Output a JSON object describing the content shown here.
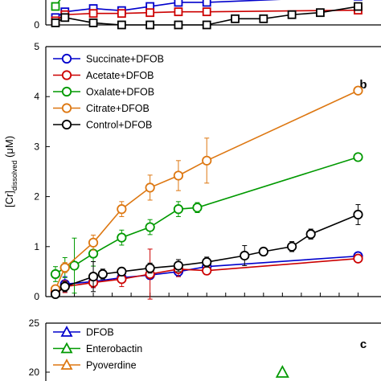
{
  "chart_data": [
    {
      "panel": "a",
      "type": "line",
      "note": "top panel, mostly cropped; only the lower portion is visible",
      "ylim": [
        0,
        1
      ],
      "yticks": [
        "0"
      ],
      "series": [
        {
          "color": "#0000cc",
          "marker": "square",
          "x": [
            0,
            1,
            4,
            7,
            10,
            13,
            16,
            32
          ],
          "y": [
            0.18,
            0.32,
            0.4,
            0.35,
            0.45,
            0.55,
            0.55,
            0.7
          ]
        },
        {
          "color": "#cc0000",
          "marker": "square",
          "x": [
            0,
            1,
            4,
            7,
            10,
            13,
            16,
            32
          ],
          "y": [
            0.1,
            0.25,
            0.28,
            0.28,
            0.3,
            0.32,
            0.32,
            0.36
          ]
        },
        {
          "color": "#009900",
          "marker": "square",
          "x": [
            0,
            1
          ],
          "y": [
            0.45,
            0.78
          ]
        },
        {
          "color": "#000000",
          "marker": "square",
          "x": [
            0,
            1,
            4,
            7,
            10,
            13,
            16,
            19,
            22,
            25,
            28,
            32
          ],
          "y": [
            0.05,
            0.18,
            0.05,
            0.0,
            0.0,
            0.0,
            0.0,
            0.15,
            0.15,
            0.25,
            0.3,
            0.45
          ]
        }
      ]
    },
    {
      "panel": "b",
      "type": "line",
      "panel_label": "b",
      "ylabel": "[Cr]",
      "ylabel_sub": "dissolved",
      "ylabel_unit": " (μM)",
      "ylim": [
        0,
        5
      ],
      "yticks": [
        "0",
        "1",
        "2",
        "3",
        "4",
        "5"
      ],
      "legend": "top-left",
      "series": [
        {
          "name": "Succinate+DFOB",
          "color": "#0000cc",
          "marker": "circle",
          "x": [
            0,
            1,
            4,
            7,
            10,
            13,
            16,
            32
          ],
          "y": [
            0.12,
            0.25,
            0.3,
            0.38,
            0.43,
            0.5,
            0.6,
            0.81
          ],
          "err": [
            0.1,
            0.15,
            0.12,
            0.08,
            0.08,
            0.1,
            0.08,
            0.05
          ]
        },
        {
          "name": "Acetate+DFOB",
          "color": "#cc0000",
          "marker": "circle",
          "x": [
            0,
            1,
            4,
            7,
            10,
            13,
            16,
            32
          ],
          "y": [
            0.1,
            0.2,
            0.28,
            0.35,
            0.45,
            0.55,
            0.52,
            0.76
          ],
          "err": [
            0.05,
            0.12,
            0.1,
            0.15,
            0.5,
            0.15,
            0.08,
            0.05
          ]
        },
        {
          "name": "Oxalate+DFOB",
          "color": "#009900",
          "marker": "circle",
          "x": [
            0,
            1,
            2,
            4,
            7,
            10,
            13,
            15,
            32
          ],
          "y": [
            0.45,
            0.58,
            0.62,
            0.86,
            1.18,
            1.39,
            1.75,
            1.78,
            2.79
          ],
          "err": [
            0.15,
            0.2,
            0.55,
            0.25,
            0.15,
            0.15,
            0.15,
            0.1,
            0.05
          ]
        },
        {
          "name": "Citrate+DFOB",
          "color": "#dd7711",
          "marker": "circle",
          "x": [
            0,
            1,
            4,
            7,
            10,
            13,
            16,
            32
          ],
          "y": [
            0.15,
            0.58,
            1.08,
            1.75,
            2.18,
            2.42,
            2.72,
            4.12
          ],
          "err": [
            0.05,
            0.1,
            0.15,
            0.15,
            0.25,
            0.3,
            0.45,
            0.05
          ]
        },
        {
          "name": "Control+DFOB",
          "color": "#000000",
          "marker": "circle",
          "x": [
            0,
            1,
            4,
            5,
            7,
            10,
            13,
            16,
            20,
            22,
            25,
            27,
            32
          ],
          "y": [
            0.05,
            0.2,
            0.4,
            0.45,
            0.5,
            0.57,
            0.62,
            0.69,
            0.82,
            0.9,
            1.0,
            1.25,
            1.64
          ],
          "err": [
            0.05,
            0.1,
            0.3,
            0.1,
            0.08,
            0.1,
            0.12,
            0.1,
            0.2,
            0.08,
            0.1,
            0.1,
            0.2
          ]
        }
      ]
    },
    {
      "panel": "c",
      "type": "line",
      "panel_label": "c",
      "note": "bottom panel, mostly cropped; only the upper portion is visible",
      "ylim": [
        0,
        25
      ],
      "yticks": [
        "20",
        "25"
      ],
      "legend": "top-left",
      "series": [
        {
          "name": "DFOB",
          "color": "#0000cc",
          "marker": "triangle"
        },
        {
          "name": "Enterobactin",
          "color": "#009900",
          "marker": "triangle",
          "x": [
            24
          ],
          "y": [
            20.0
          ]
        },
        {
          "name": "Pyoverdine",
          "color": "#dd7711",
          "marker": "triangle"
        }
      ]
    }
  ]
}
